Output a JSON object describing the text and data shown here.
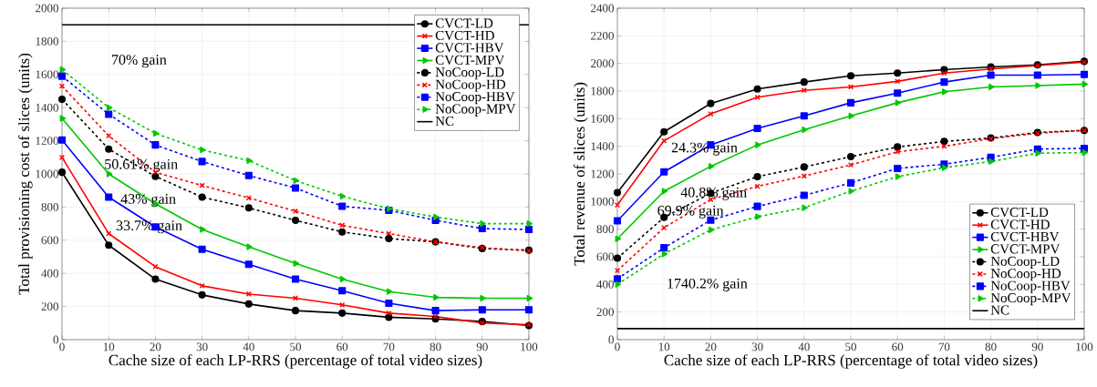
{
  "chart_data": [
    {
      "type": "line",
      "xlabel": "Cache size of each LP-RRS (percentage of total video sizes)",
      "ylabel": "Total provisioning cost of slices (units)",
      "x": [
        0,
        10,
        20,
        30,
        40,
        50,
        60,
        70,
        80,
        90,
        100
      ],
      "xlim": [
        0,
        100
      ],
      "xticks": [
        0,
        10,
        20,
        30,
        40,
        50,
        60,
        70,
        80,
        90,
        100
      ],
      "ylim": [
        0,
        2000
      ],
      "yticks": [
        0,
        200,
        400,
        600,
        800,
        1000,
        1200,
        1400,
        1600,
        1800,
        2000
      ],
      "grid": true,
      "legend": "top right",
      "series": [
        {
          "name": "CVCT-LD",
          "color": "#000000",
          "marker": "circle",
          "line_style": "solid",
          "values": [
            1010,
            570,
            365,
            270,
            215,
            175,
            160,
            135,
            125,
            110,
            85
          ]
        },
        {
          "name": "CVCT-HD",
          "color": "#ff0000",
          "marker": "cross",
          "line_style": "solid",
          "values": [
            1100,
            640,
            440,
            325,
            275,
            250,
            210,
            160,
            140,
            100,
            90
          ]
        },
        {
          "name": "CVCT-HBV",
          "color": "#0000ff",
          "marker": "square",
          "line_style": "solid",
          "values": [
            1205,
            860,
            680,
            545,
            455,
            365,
            295,
            220,
            175,
            180,
            180
          ]
        },
        {
          "name": "CVCT-MPV",
          "color": "#00c800",
          "marker": "triangle",
          "line_style": "solid",
          "values": [
            1335,
            1000,
            820,
            665,
            560,
            460,
            365,
            290,
            255,
            250,
            250
          ]
        },
        {
          "name": "NoCoop-LD",
          "color": "#000000",
          "marker": "circle",
          "line_style": "dashed",
          "values": [
            1450,
            1150,
            985,
            860,
            795,
            720,
            650,
            610,
            590,
            550,
            540
          ]
        },
        {
          "name": "NoCoop-HD",
          "color": "#ff0000",
          "marker": "cross",
          "line_style": "dashed",
          "values": [
            1530,
            1230,
            1010,
            930,
            855,
            775,
            690,
            640,
            590,
            555,
            535
          ]
        },
        {
          "name": "NoCoop-HBV",
          "color": "#0000ff",
          "marker": "square",
          "line_style": "dashed",
          "values": [
            1590,
            1360,
            1175,
            1075,
            990,
            915,
            805,
            780,
            720,
            670,
            665
          ]
        },
        {
          "name": "NoCoop-MPV",
          "color": "#00c800",
          "marker": "triangle",
          "line_style": "dashed",
          "values": [
            1630,
            1400,
            1245,
            1145,
            1080,
            960,
            865,
            790,
            740,
            700,
            700
          ]
        },
        {
          "name": "NC",
          "color": "#000000",
          "marker": "none",
          "line_style": "solid",
          "values": [
            1900,
            1900,
            1900,
            1900,
            1900,
            1900,
            1900,
            1900,
            1900,
            1900,
            1900
          ]
        }
      ],
      "annotations": [
        "70% gain",
        "50.61% gain",
        "43% gain",
        "33.7% gain"
      ]
    },
    {
      "type": "line",
      "xlabel": "Cache size of each LP-RRS (percentage of total video sizes)",
      "ylabel": "Total revenue of slices (units)",
      "x": [
        0,
        10,
        20,
        30,
        40,
        50,
        60,
        70,
        80,
        90,
        100
      ],
      "xlim": [
        0,
        100
      ],
      "xticks": [
        0,
        10,
        20,
        30,
        40,
        50,
        60,
        70,
        80,
        90,
        100
      ],
      "ylim": [
        0,
        2400
      ],
      "yticks": [
        0,
        200,
        400,
        600,
        800,
        1000,
        1200,
        1400,
        1600,
        1800,
        2000,
        2200,
        2400
      ],
      "grid": true,
      "legend": "bottom right",
      "series": [
        {
          "name": "CVCT-LD",
          "color": "#000000",
          "marker": "circle",
          "line_style": "solid",
          "values": [
            1065,
            1505,
            1710,
            1815,
            1865,
            1910,
            1930,
            1955,
            1975,
            1990,
            2015
          ]
        },
        {
          "name": "CVCT-HD",
          "color": "#ff0000",
          "marker": "cross",
          "line_style": "solid",
          "values": [
            975,
            1440,
            1635,
            1755,
            1805,
            1830,
            1870,
            1930,
            1960,
            1985,
            2010
          ]
        },
        {
          "name": "CVCT-HBV",
          "color": "#0000ff",
          "marker": "square",
          "line_style": "solid",
          "values": [
            860,
            1215,
            1410,
            1530,
            1620,
            1715,
            1785,
            1865,
            1915,
            1915,
            1920
          ]
        },
        {
          "name": "CVCT-MPV",
          "color": "#00c800",
          "marker": "triangle",
          "line_style": "solid",
          "values": [
            730,
            1075,
            1255,
            1410,
            1520,
            1620,
            1715,
            1795,
            1830,
            1840,
            1850
          ]
        },
        {
          "name": "NoCoop-LD",
          "color": "#000000",
          "marker": "circle",
          "line_style": "dashed",
          "values": [
            590,
            885,
            1060,
            1180,
            1250,
            1325,
            1395,
            1435,
            1460,
            1500,
            1515
          ]
        },
        {
          "name": "NoCoop-HD",
          "color": "#ff0000",
          "marker": "cross",
          "line_style": "dashed",
          "values": [
            500,
            810,
            1015,
            1110,
            1185,
            1265,
            1360,
            1400,
            1455,
            1495,
            1515
          ]
        },
        {
          "name": "NoCoop-HBV",
          "color": "#0000ff",
          "marker": "square",
          "line_style": "dashed",
          "values": [
            440,
            665,
            865,
            965,
            1045,
            1135,
            1240,
            1270,
            1320,
            1380,
            1385
          ]
        },
        {
          "name": "NoCoop-MPV",
          "color": "#00c800",
          "marker": "triangle",
          "line_style": "dashed",
          "values": [
            400,
            620,
            795,
            890,
            955,
            1075,
            1180,
            1245,
            1290,
            1350,
            1355
          ]
        },
        {
          "name": "NC",
          "color": "#000000",
          "marker": "none",
          "line_style": "solid",
          "values": [
            80,
            80,
            80,
            80,
            80,
            80,
            80,
            80,
            80,
            80,
            80
          ]
        }
      ],
      "annotations": [
        "24.3% gain",
        "40.8% gain",
        "69.9% gain",
        "1740.2% gain"
      ]
    }
  ]
}
